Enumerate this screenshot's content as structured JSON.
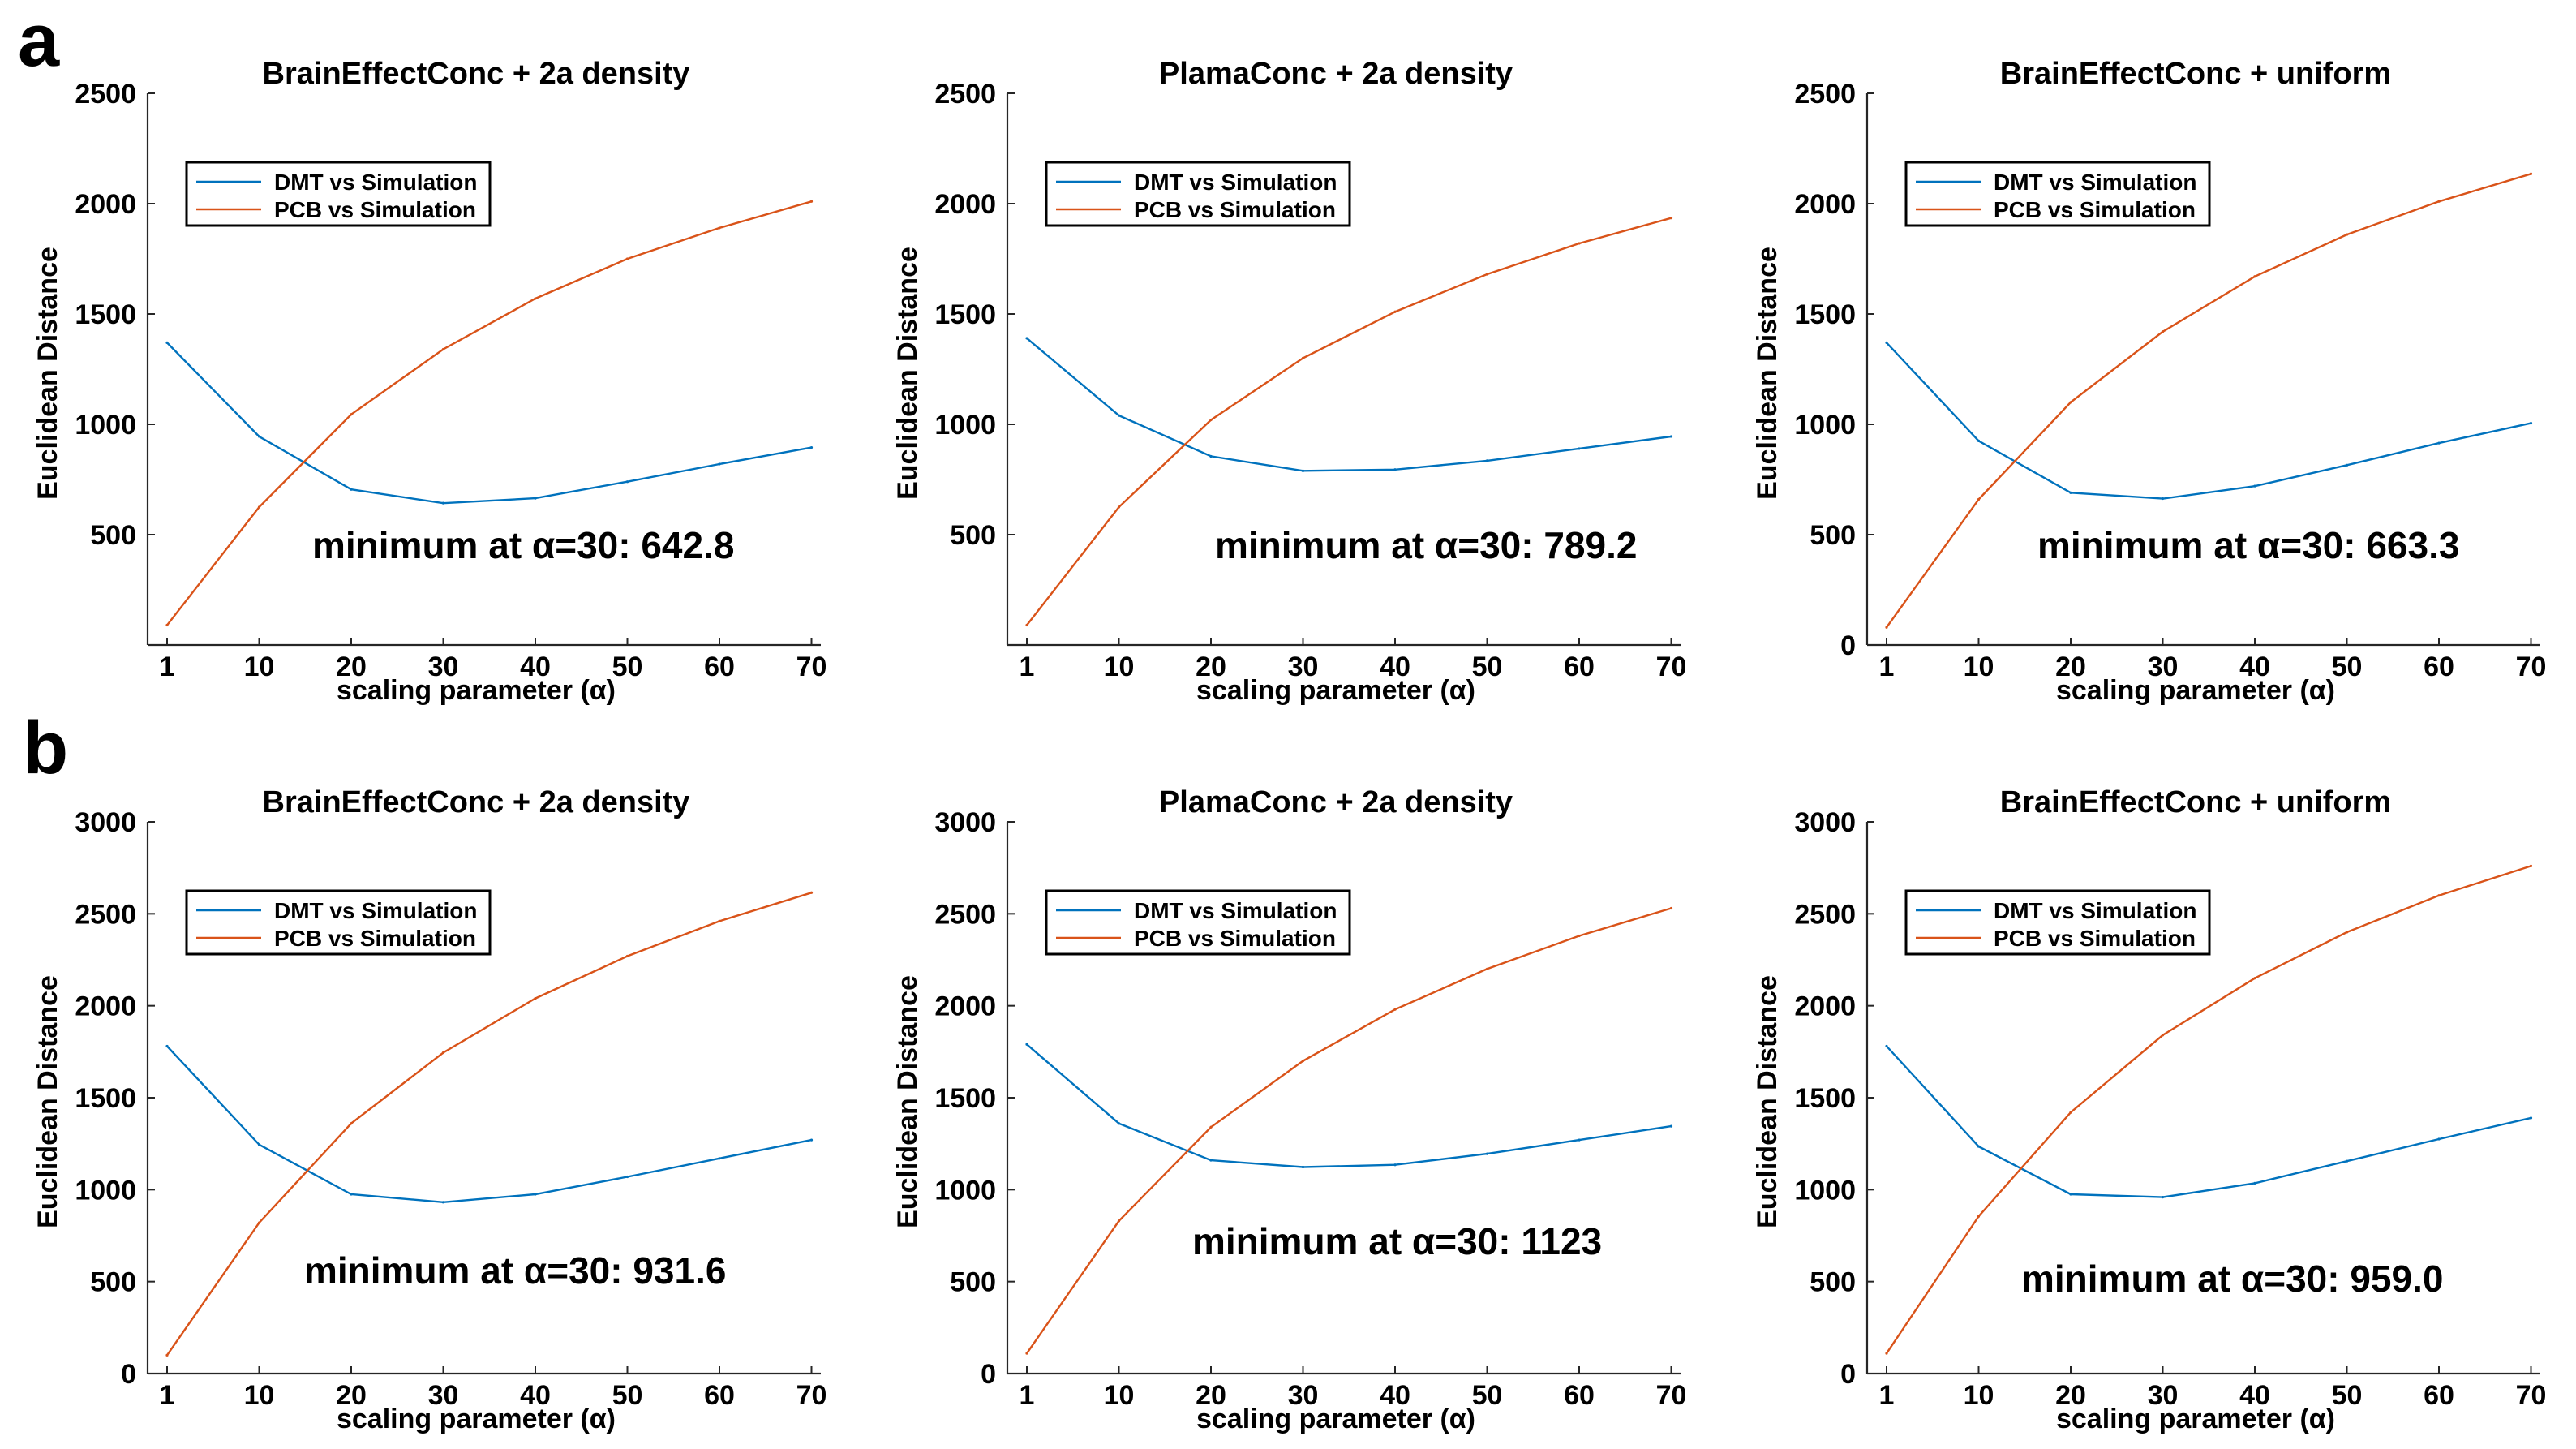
{
  "panel_labels": [
    "a",
    "b"
  ],
  "chart_data": [
    {
      "type": "line",
      "row": 0,
      "col": 0,
      "title": "BrainEffectConc + 2a density",
      "xlabel": "scaling parameter (α)",
      "ylabel": "Euclidean Distance",
      "x": [
        1,
        10,
        20,
        30,
        40,
        50,
        60,
        70
      ],
      "xticks": [
        "1",
        "10",
        "20",
        "30",
        "40",
        "50",
        "60",
        "70"
      ],
      "ylim": [
        0,
        2500
      ],
      "yticks": [
        500,
        1000,
        1500,
        2000,
        2500
      ],
      "series": [
        {
          "name": "DMT vs Simulation",
          "color": "#0072BD",
          "values": [
            1370,
            945,
            705,
            642.8,
            665,
            740,
            820,
            895
          ]
        },
        {
          "name": "PCB vs Simulation",
          "color": "#D95319",
          "values": [
            90,
            625,
            1045,
            1340,
            1570,
            1750,
            1890,
            2010
          ]
        }
      ],
      "annotation": "minimum at α=30: 642.8",
      "grid": false,
      "legend": "top-left"
    },
    {
      "type": "line",
      "row": 0,
      "col": 1,
      "title": "PlamaConc + 2a density",
      "xlabel": "scaling parameter (α)",
      "ylabel": "Euclidean Distance",
      "x": [
        1,
        10,
        20,
        30,
        40,
        50,
        60,
        70
      ],
      "xticks": [
        "1",
        "10",
        "20",
        "30",
        "40",
        "50",
        "60",
        "70"
      ],
      "ylim": [
        0,
        2500
      ],
      "yticks": [
        500,
        1000,
        1500,
        2000,
        2500
      ],
      "series": [
        {
          "name": "DMT vs Simulation",
          "color": "#0072BD",
          "values": [
            1390,
            1040,
            855,
            789.2,
            795,
            835,
            890,
            945
          ]
        },
        {
          "name": "PCB vs Simulation",
          "color": "#D95319",
          "values": [
            90,
            625,
            1020,
            1300,
            1510,
            1680,
            1820,
            1935
          ]
        }
      ],
      "annotation": "minimum at α=30: 789.2",
      "grid": false,
      "legend": "top-left"
    },
    {
      "type": "line",
      "row": 0,
      "col": 2,
      "title": "BrainEffectConc + uniform",
      "xlabel": "scaling parameter (α)",
      "ylabel": "Euclidean Distance",
      "x": [
        1,
        10,
        20,
        30,
        40,
        50,
        60,
        70
      ],
      "xticks": [
        "1",
        "10",
        "20",
        "30",
        "40",
        "50",
        "60",
        "70"
      ],
      "ylim": [
        0,
        2500
      ],
      "yticks": [
        0,
        500,
        1000,
        1500,
        2000,
        2500
      ],
      "series": [
        {
          "name": "DMT vs Simulation",
          "color": "#0072BD",
          "values": [
            1370,
            925,
            690,
            663.3,
            720,
            815,
            915,
            1005
          ]
        },
        {
          "name": "PCB vs Simulation",
          "color": "#D95319",
          "values": [
            80,
            660,
            1100,
            1420,
            1670,
            1860,
            2010,
            2135
          ]
        }
      ],
      "annotation": "minimum at α=30: 663.3",
      "grid": false,
      "legend": "top-left"
    },
    {
      "type": "line",
      "row": 1,
      "col": 0,
      "title": "BrainEffectConc + 2a density",
      "xlabel": "scaling parameter (α)",
      "ylabel": "Euclidean Distance",
      "x": [
        1,
        10,
        20,
        30,
        40,
        50,
        60,
        70
      ],
      "xticks": [
        "1",
        "10",
        "20",
        "30",
        "40",
        "50",
        "60",
        "70"
      ],
      "ylim": [
        0,
        3000
      ],
      "yticks": [
        0,
        500,
        1000,
        1500,
        2000,
        2500,
        3000
      ],
      "series": [
        {
          "name": "DMT vs Simulation",
          "color": "#0072BD",
          "values": [
            1780,
            1245,
            975,
            931.6,
            975,
            1070,
            1170,
            1270
          ]
        },
        {
          "name": "PCB vs Simulation",
          "color": "#D95319",
          "values": [
            100,
            820,
            1360,
            1745,
            2040,
            2270,
            2460,
            2615
          ]
        }
      ],
      "annotation": "minimum at α=30: 931.6",
      "grid": false,
      "legend": "top-left"
    },
    {
      "type": "line",
      "row": 1,
      "col": 1,
      "title": "PlamaConc + 2a density",
      "xlabel": "scaling parameter (α)",
      "ylabel": "Euclidean Distance",
      "x": [
        1,
        10,
        20,
        30,
        40,
        50,
        60,
        70
      ],
      "xticks": [
        "1",
        "10",
        "20",
        "30",
        "40",
        "50",
        "60",
        "70"
      ],
      "ylim": [
        0,
        3000
      ],
      "yticks": [
        0,
        500,
        1000,
        1500,
        2000,
        2500,
        3000
      ],
      "series": [
        {
          "name": "DMT vs Simulation",
          "color": "#0072BD",
          "values": [
            1790,
            1360,
            1160,
            1123,
            1135,
            1195,
            1270,
            1345
          ]
        },
        {
          "name": "PCB vs Simulation",
          "color": "#D95319",
          "values": [
            110,
            830,
            1340,
            1700,
            1980,
            2200,
            2380,
            2530
          ]
        }
      ],
      "annotation": "minimum at α=30: 1123",
      "grid": false,
      "legend": "top-left"
    },
    {
      "type": "line",
      "row": 1,
      "col": 2,
      "title": "BrainEffectConc + uniform",
      "xlabel": "scaling parameter (α)",
      "ylabel": "Euclidean Distance",
      "x": [
        1,
        10,
        20,
        30,
        40,
        50,
        60,
        70
      ],
      "xticks": [
        "1",
        "10",
        "20",
        "30",
        "40",
        "50",
        "60",
        "70"
      ],
      "ylim": [
        0,
        3000
      ],
      "yticks": [
        0,
        500,
        1000,
        1500,
        2000,
        2500,
        3000
      ],
      "series": [
        {
          "name": "DMT vs Simulation",
          "color": "#0072BD",
          "values": [
            1780,
            1235,
            975,
            959.0,
            1035,
            1155,
            1275,
            1390
          ]
        },
        {
          "name": "PCB vs Simulation",
          "color": "#D95319",
          "values": [
            110,
            855,
            1420,
            1840,
            2150,
            2400,
            2600,
            2760
          ]
        }
      ],
      "annotation": "minimum at α=30: 959.0",
      "grid": false,
      "legend": "top-left"
    }
  ]
}
